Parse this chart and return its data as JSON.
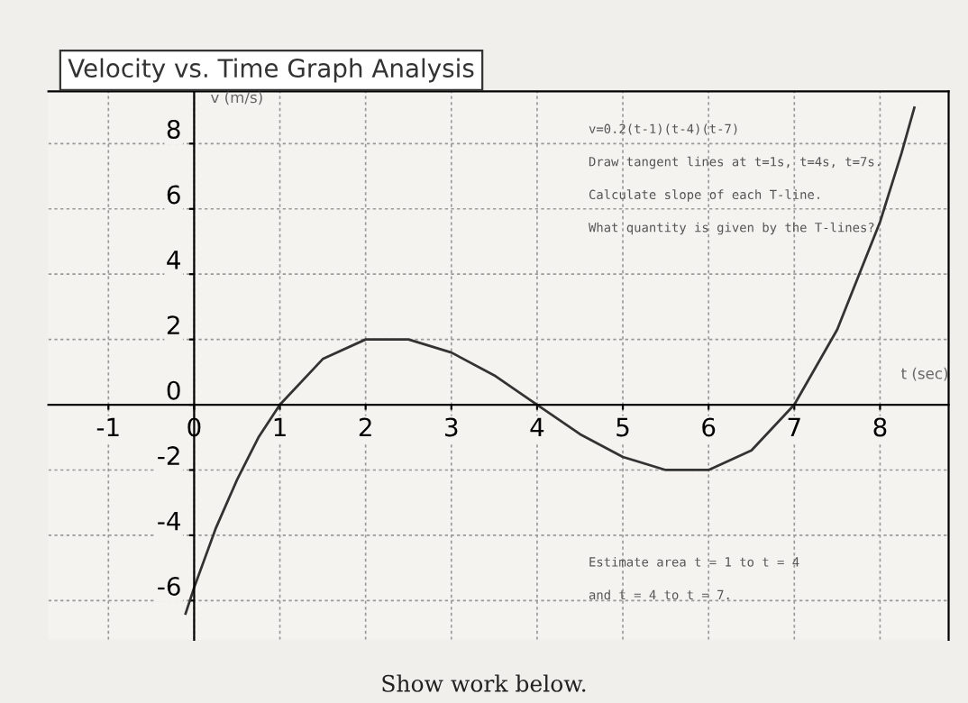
{
  "chart_data": {
    "type": "line",
    "title": "Velocity vs. Time Graph Analysis",
    "xlabel": "t (sec)",
    "ylabel": "v (m/s)",
    "x": [
      -0.1,
      0,
      0.25,
      0.5,
      0.75,
      1,
      1.5,
      2,
      2.5,
      3,
      3.5,
      4,
      4.5,
      5,
      5.5,
      6,
      6.5,
      7,
      7.5,
      8,
      8.25,
      8.4
    ],
    "series": [
      {
        "color": "#333333",
        "values": [
          -6.4,
          -5.6,
          -3.8,
          -2.3,
          -1.0,
          0,
          1.4,
          2.0,
          2.0,
          1.6,
          0.9,
          0,
          -0.9,
          -1.6,
          -2.0,
          -2.0,
          -1.4,
          0,
          2.3,
          5.6,
          7.7,
          9.1
        ]
      }
    ],
    "xlim": [
      -1.7,
      8.8
    ],
    "ylim": [
      -7.2,
      9.6
    ],
    "xticks": [
      -1,
      0,
      1,
      2,
      3,
      4,
      5,
      6,
      7,
      8
    ],
    "yticks": [
      -6,
      -4,
      -2,
      0,
      2,
      4,
      6,
      8
    ],
    "grid": true,
    "marker": "none",
    "line_style": "solid",
    "annotations": [
      "v=0.2(t-1)(t-4)(t-7)",
      "Draw tangent lines at t=1s, t=4s, t=7s.",
      "Calculate slope of each T-line.",
      "What quantity is given by the T-lines?",
      "Estimate area t = 1 to t = 4",
      "and t = 4 to t = 7.",
      "Show work below."
    ]
  }
}
